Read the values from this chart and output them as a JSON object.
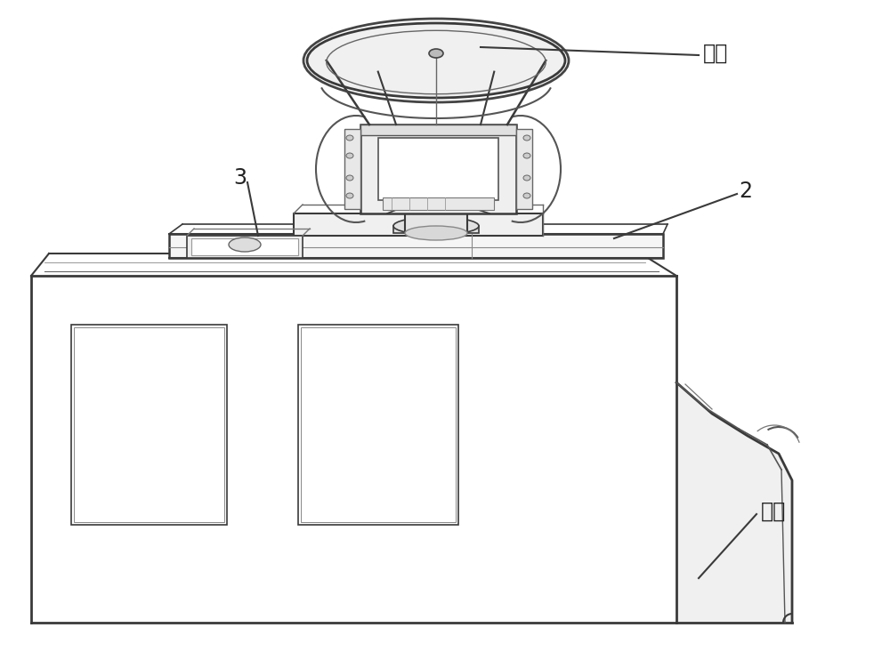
{
  "background_color": "#ffffff",
  "line_color": "#3a3a3a",
  "line_color_light": "#888888",
  "label_leida": "雷达",
  "label_2": "2",
  "label_3": "3",
  "label_chexiang": "车厄",
  "fig_width": 10.0,
  "fig_height": 7.42,
  "dpi": 100,
  "body_fill": "#f0f0f0",
  "body_fill2": "#e8e8e8"
}
